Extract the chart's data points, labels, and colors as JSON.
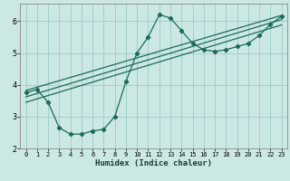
{
  "xlabel": "Humidex (Indice chaleur)",
  "bg_color": "#cce8e5",
  "grid_color": "#99ccc8",
  "line_color": "#1a6b5a",
  "xlim": [
    -0.5,
    23.5
  ],
  "ylim": [
    2.0,
    6.55
  ],
  "xticks": [
    0,
    1,
    2,
    3,
    4,
    5,
    6,
    7,
    8,
    9,
    10,
    11,
    12,
    13,
    14,
    15,
    16,
    17,
    18,
    19,
    20,
    21,
    22,
    23
  ],
  "yticks": [
    2,
    3,
    4,
    5,
    6
  ],
  "curve1_x": [
    0,
    1,
    2,
    3,
    4,
    5,
    6,
    7,
    8,
    9,
    10,
    11,
    12,
    13,
    14,
    15,
    16,
    17,
    18,
    19,
    20,
    21,
    22,
    23
  ],
  "curve1_y": [
    3.75,
    3.85,
    3.45,
    2.65,
    2.45,
    2.45,
    2.55,
    2.6,
    3.0,
    4.1,
    5.0,
    5.5,
    6.2,
    6.1,
    5.7,
    5.3,
    5.1,
    5.05,
    5.1,
    5.2,
    5.3,
    5.55,
    5.9,
    6.15
  ],
  "line2_x": [
    0,
    23
  ],
  "line2_y": [
    3.82,
    6.18
  ],
  "line3_x": [
    0,
    23
  ],
  "line3_y": [
    3.62,
    6.05
  ],
  "line4_x": [
    0,
    23
  ],
  "line4_y": [
    3.45,
    5.88
  ]
}
